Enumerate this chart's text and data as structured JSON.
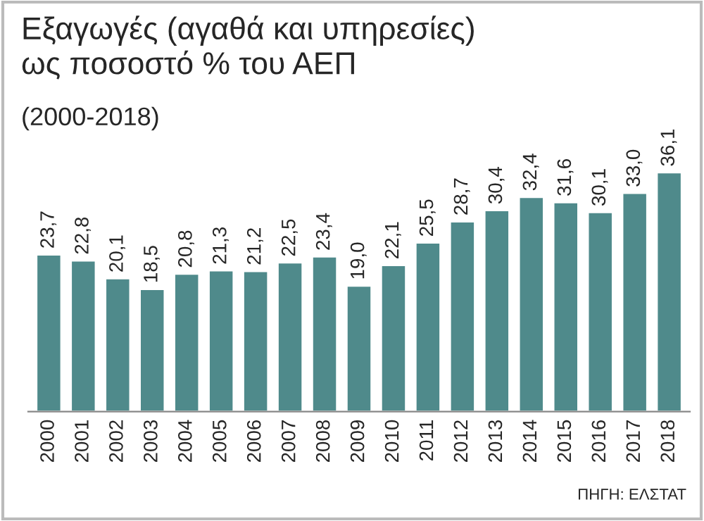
{
  "chart_data": {
    "type": "bar",
    "title": "Εξαγωγές (αγαθά και υπηρεσίες)\nως ποσοστό % του ΑΕΠ",
    "subtitle": "(2000-2018)",
    "categories": [
      "2000",
      "2001",
      "2002",
      "2003",
      "2004",
      "2005",
      "2006",
      "2007",
      "2008",
      "2009",
      "2010",
      "2011",
      "2012",
      "2013",
      "2014",
      "2015",
      "2016",
      "2017",
      "2018"
    ],
    "values": [
      23.7,
      22.8,
      20.1,
      18.5,
      20.8,
      21.3,
      21.2,
      22.5,
      23.4,
      19.0,
      22.1,
      25.5,
      28.7,
      30.4,
      32.4,
      31.6,
      30.1,
      33.0,
      36.1
    ],
    "value_labels": [
      "23,7",
      "22,8",
      "20,1",
      "18,5",
      "20,8",
      "21,3",
      "21,2",
      "22,5",
      "23,4",
      "19,0",
      "22,1",
      "25,5",
      "28,7",
      "30,4",
      "32,4",
      "31,6",
      "30,1",
      "33,0",
      "36,1"
    ],
    "color": "#4f8a8b",
    "annotations": [
      "ΠΗΓΗ: ΕΛΣΤΑΤ"
    ],
    "grid": false,
    "legend": false
  }
}
